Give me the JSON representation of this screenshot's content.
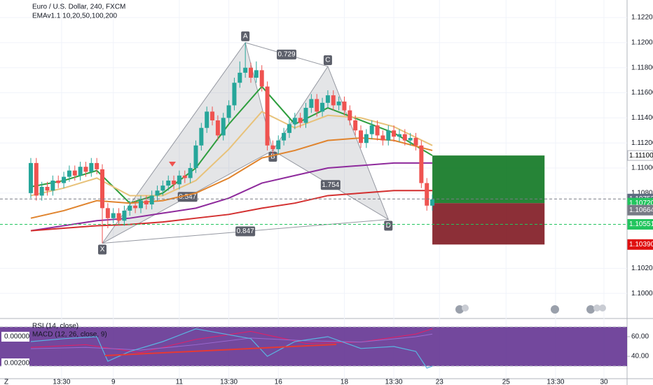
{
  "chart_data": {
    "type": "candlestick",
    "title": "Euro / U.S. Dollar, 240, FXCM",
    "subtitle": "EMAv1.1 10,20,50,100,200",
    "up_color": "#26a69a",
    "down_color": "#ef5350",
    "xlim": [
      -5.6,
      108.4
    ],
    "ylim": [
      1.098,
      1.1234
    ],
    "yticks": [
      {
        "value": 1.122,
        "label": "1.12200"
      },
      {
        "value": 1.12,
        "label": "1.12000"
      },
      {
        "value": 1.118,
        "label": "1.11800"
      },
      {
        "value": 1.116,
        "label": "1.11600"
      },
      {
        "value": 1.114,
        "label": "1.11400"
      },
      {
        "value": 1.112,
        "label": "1.11200"
      },
      {
        "value": 1.11,
        "label": "1.11000"
      },
      {
        "value": 1.108,
        "label": "1.10800"
      },
      {
        "value": 1.102,
        "label": "1.10200"
      },
      {
        "value": 1.1,
        "label": "1.10000"
      }
    ],
    "xticks": [
      {
        "value": 5.6,
        "label": "13:30"
      },
      {
        "value": 15,
        "label": "9"
      },
      {
        "value": 27,
        "label": "11"
      },
      {
        "value": 36,
        "label": "13:30"
      },
      {
        "value": 45,
        "label": "16"
      },
      {
        "value": 57,
        "label": "18"
      },
      {
        "value": 66,
        "label": "13:30"
      },
      {
        "value": 74.3,
        "label": "23"
      },
      {
        "value": 86.4,
        "label": "25"
      },
      {
        "value": 95.4,
        "label": "13:30"
      },
      {
        "value": 104.2,
        "label": "30"
      }
    ],
    "grid": true,
    "candles": [
      [
        1.108,
        1.1108,
        1.1076,
        1.1104
      ],
      [
        1.1104,
        1.1108,
        1.1074,
        1.1078
      ],
      [
        1.1078,
        1.1089,
        1.1074,
        1.1085
      ],
      [
        1.1085,
        1.1089,
        1.1078,
        1.1082
      ],
      [
        1.1082,
        1.1094,
        1.1078,
        1.109
      ],
      [
        1.109,
        1.1094,
        1.1084,
        1.1088
      ],
      [
        1.1088,
        1.1097,
        1.1084,
        1.1093
      ],
      [
        1.1093,
        1.1102,
        1.1089,
        1.1098
      ],
      [
        1.1098,
        1.1102,
        1.109,
        1.1094
      ],
      [
        1.1094,
        1.1105,
        1.109,
        1.1101
      ],
      [
        1.1101,
        1.1105,
        1.1093,
        1.1097
      ],
      [
        1.1097,
        1.1108,
        1.1093,
        1.1104
      ],
      [
        1.1104,
        1.1108,
        1.1095,
        1.1099
      ],
      [
        1.1099,
        1.1103,
        1.104,
        1.1068
      ],
      [
        1.1068,
        1.1072,
        1.1052,
        1.106
      ],
      [
        1.106,
        1.1068,
        1.1056,
        1.1064
      ],
      [
        1.1064,
        1.1068,
        1.1054,
        1.1058
      ],
      [
        1.1058,
        1.107,
        1.1054,
        1.1066
      ],
      [
        1.1066,
        1.1074,
        1.1062,
        1.107
      ],
      [
        1.107,
        1.1074,
        1.1064,
        1.1068
      ],
      [
        1.1068,
        1.1078,
        1.1064,
        1.1074
      ],
      [
        1.1074,
        1.1078,
        1.1067,
        1.1071
      ],
      [
        1.1071,
        1.1082,
        1.1067,
        1.1078
      ],
      [
        1.1078,
        1.1086,
        1.1074,
        1.1082
      ],
      [
        1.1082,
        1.109,
        1.1078,
        1.1086
      ],
      [
        1.1086,
        1.1094,
        1.1082,
        1.109
      ],
      [
        1.109,
        1.1094,
        1.1083,
        1.1087
      ],
      [
        1.1087,
        1.1098,
        1.1083,
        1.1094
      ],
      [
        1.1094,
        1.1098,
        1.1088,
        1.1092
      ],
      [
        1.1092,
        1.1104,
        1.1088,
        1.11
      ],
      [
        1.11,
        1.1122,
        1.1096,
        1.1118
      ],
      [
        1.1118,
        1.1136,
        1.1114,
        1.1132
      ],
      [
        1.1132,
        1.1149,
        1.1128,
        1.1145
      ],
      [
        1.1145,
        1.1149,
        1.1134,
        1.1138
      ],
      [
        1.1138,
        1.1142,
        1.1122,
        1.1126
      ],
      [
        1.1126,
        1.1144,
        1.1122,
        1.114
      ],
      [
        1.114,
        1.1154,
        1.1136,
        1.115
      ],
      [
        1.115,
        1.1172,
        1.1146,
        1.1168
      ],
      [
        1.1168,
        1.1185,
        1.1164,
        1.1176
      ],
      [
        1.1176,
        1.12,
        1.1172,
        1.118
      ],
      [
        1.118,
        1.1184,
        1.1168,
        1.1172
      ],
      [
        1.1172,
        1.1185,
        1.1168,
        1.1178
      ],
      [
        1.1178,
        1.1182,
        1.1161,
        1.1165
      ],
      [
        1.1165,
        1.1169,
        1.1114,
        1.1118
      ],
      [
        1.1118,
        1.1122,
        1.1111,
        1.1115
      ],
      [
        1.1115,
        1.1126,
        1.1111,
        1.1122
      ],
      [
        1.1122,
        1.1132,
        1.1118,
        1.1128
      ],
      [
        1.1128,
        1.1139,
        1.1124,
        1.1135
      ],
      [
        1.1135,
        1.1144,
        1.1131,
        1.114
      ],
      [
        1.114,
        1.1144,
        1.1132,
        1.1136
      ],
      [
        1.1136,
        1.1152,
        1.1132,
        1.1148
      ],
      [
        1.1148,
        1.1159,
        1.1144,
        1.1155
      ],
      [
        1.1155,
        1.1159,
        1.1141,
        1.1145
      ],
      [
        1.1145,
        1.1156,
        1.1141,
        1.1152
      ],
      [
        1.1152,
        1.1162,
        1.1148,
        1.1158
      ],
      [
        1.1158,
        1.1162,
        1.1146,
        1.115
      ],
      [
        1.115,
        1.1157,
        1.1146,
        1.1153
      ],
      [
        1.1153,
        1.1157,
        1.1142,
        1.1146
      ],
      [
        1.1146,
        1.115,
        1.1134,
        1.1138
      ],
      [
        1.1138,
        1.1142,
        1.1126,
        1.113
      ],
      [
        1.113,
        1.1134,
        1.1116,
        1.112
      ],
      [
        1.112,
        1.1131,
        1.1116,
        1.1127
      ],
      [
        1.1127,
        1.1138,
        1.1123,
        1.1134
      ],
      [
        1.1134,
        1.1138,
        1.1122,
        1.1126
      ],
      [
        1.1126,
        1.113,
        1.1118,
        1.1122
      ],
      [
        1.1122,
        1.1134,
        1.1118,
        1.113
      ],
      [
        1.113,
        1.1134,
        1.1121,
        1.1125
      ],
      [
        1.1125,
        1.1131,
        1.1121,
        1.1127
      ],
      [
        1.1127,
        1.1131,
        1.1118,
        1.1122
      ],
      [
        1.1122,
        1.1128,
        1.1118,
        1.1124
      ],
      [
        1.1124,
        1.1128,
        1.1114,
        1.1118
      ],
      [
        1.1118,
        1.1122,
        1.1084,
        1.1088
      ],
      [
        1.1088,
        1.1092,
        1.1066,
        1.107
      ],
      [
        1.107,
        1.1079,
        1.1066,
        1.1075
      ]
    ],
    "ema_x": [
      0,
      6,
      12,
      18,
      24,
      30,
      36,
      42,
      48,
      54,
      60,
      66,
      73
    ],
    "series": [
      {
        "color": "#2e9e3e",
        "values": [
          1.1085,
          1.109,
          1.1098,
          1.1072,
          1.108,
          1.11,
          1.1135,
          1.1165,
          1.1135,
          1.1148,
          1.1138,
          1.1128,
          1.111
        ]
      },
      {
        "color": "#e8c27a",
        "values": [
          1.1078,
          1.1084,
          1.1092,
          1.1078,
          1.1078,
          1.109,
          1.1115,
          1.1145,
          1.1132,
          1.1142,
          1.114,
          1.1133,
          1.1118
        ]
      },
      {
        "color": "#e0842e",
        "values": [
          1.106,
          1.1066,
          1.1074,
          1.1072,
          1.1074,
          1.108,
          1.1092,
          1.1108,
          1.1114,
          1.1122,
          1.1124,
          1.1122,
          1.1114
        ]
      },
      {
        "color": "#8e2a9c",
        "values": [
          1.105,
          1.1054,
          1.1058,
          1.106,
          1.1064,
          1.1068,
          1.1076,
          1.1088,
          1.1094,
          1.11,
          1.1102,
          1.1104,
          1.1104
        ]
      },
      {
        "color": "#d32f2f",
        "values": [
          1.105,
          1.1052,
          1.1054,
          1.1055,
          1.1057,
          1.106,
          1.1063,
          1.1068,
          1.1072,
          1.1078,
          1.108,
          1.1082,
          1.1082
        ]
      }
    ],
    "pattern": {
      "points": [
        {
          "label": "X",
          "x": 13,
          "price": 1.104
        },
        {
          "label": "A",
          "x": 39,
          "price": 1.12
        },
        {
          "label": "B",
          "x": 44,
          "price": 1.1114
        },
        {
          "label": "C",
          "x": 54,
          "price": 1.1181
        },
        {
          "label": "D",
          "x": 65,
          "price": 1.1059
        }
      ],
      "ratios": [
        0.547,
        0.729,
        1.754,
        0.847
      ]
    },
    "position": {
      "start": 73,
      "end": 93.4,
      "entry": 1.1072,
      "target": 1.111,
      "stop": 1.1039
    },
    "price_labels": [
      {
        "value": 1.111,
        "label": "1.11100",
        "color": "#ffffff",
        "text_color": "#000000"
      },
      {
        "value": 1.10753,
        "label": "1.10753",
        "color": "#5d6b80",
        "text_color": "#ffffff"
      },
      {
        "value": 1.1072,
        "label": "1.10720",
        "color": "#22c55e",
        "text_color": "#ffffff"
      },
      {
        "value": 1.10664,
        "label": "1.10664",
        "color": "#787b86",
        "text_color": "#ffffff"
      },
      {
        "value": 1.10551,
        "label": "1.10551",
        "color": "#22c55e",
        "text_color": "#ffffff"
      },
      {
        "value": 1.1039,
        "label": "1.10390",
        "color": "#e01010",
        "text_color": "#ffffff"
      }
    ],
    "rsi": {
      "name": "RSI (14, close)",
      "color": "#5ab4e0",
      "ylim": [
        17.9,
        76.4
      ],
      "yticks": [
        {
          "value": 60,
          "label": "60.00"
        },
        {
          "value": 40,
          "label": "40.00"
        }
      ],
      "bands": [
        70,
        30
      ],
      "x": [
        0,
        6,
        12,
        14,
        18,
        24,
        30,
        36,
        40,
        43,
        48,
        54,
        60,
        66,
        70,
        72,
        73
      ],
      "values": [
        55,
        58,
        60,
        35,
        45,
        55,
        68,
        62,
        58,
        40,
        55,
        60,
        48,
        50,
        45,
        28,
        30
      ]
    },
    "macd": {
      "name": "MACD (12, 26, close, 9)",
      "ylim": [
        0.0031,
        -0.00121
      ],
      "yticks": [
        {
          "value": 0,
          "label": "0.00000"
        },
        {
          "value": 0.002,
          "label": "0.00200"
        }
      ],
      "x": [
        0,
        10,
        20,
        30,
        40,
        50,
        60,
        70,
        73
      ],
      "lines": [
        {
          "color": "#e91e63",
          "values": [
            0.0008,
            0.0006,
            0.0012,
            0.0002,
            -0.0004,
            0.0005,
            0.0004,
            -0.0002,
            -0.0006
          ]
        },
        {
          "color": "#9c6ad0",
          "values": [
            0.0009,
            0.0008,
            0.001,
            0.0006,
            0.0001,
            0.0003,
            0.0004,
            0.0,
            -0.0002
          ]
        }
      ]
    }
  }
}
